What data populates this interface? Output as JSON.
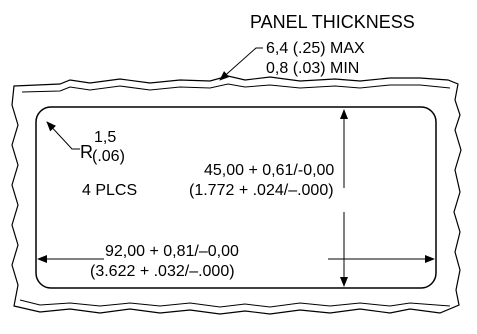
{
  "panel_thickness": {
    "title": "PANEL THICKNESS",
    "max": "6,4 (.25) MAX",
    "min": "0,8 (.03) MIN"
  },
  "radius": {
    "prefix": "R",
    "metric": "1,5",
    "imperial": "(.06)",
    "count": "4 PLCS"
  },
  "height_dim": {
    "metric": "45,00  + 0,61/-0,00",
    "imperial": "(1.772  + .024/–.000)"
  },
  "width_dim": {
    "metric": "92,00  + 0,81/–0,00",
    "imperial": "(3.622  + .032/–.000)"
  },
  "colors": {
    "line": "#000000",
    "background": "#ffffff"
  }
}
